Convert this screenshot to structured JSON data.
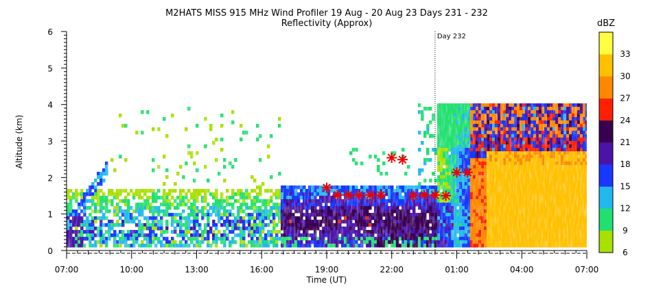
{
  "chart_data": {
    "type": "heatmap",
    "title": "M2HATS MISS 915 MHz Wind Profiler  19 Aug - 20 Aug 23 Days 231 - 232",
    "subtitle": "Reflectivity (Approx)",
    "xlabel": "Time (UT)",
    "ylabel": "Altitude (km)",
    "x_ticks": [
      "07:00",
      "10:00",
      "13:00",
      "16:00",
      "19:00",
      "22:00",
      "01:00",
      "04:00",
      "07:00"
    ],
    "y_ticks": [
      "0",
      "1",
      "2",
      "3",
      "4",
      "5",
      "6"
    ],
    "xlim_hours": [
      0,
      24
    ],
    "ylim": [
      0,
      6
    ],
    "day_marker": {
      "label": "Day 232",
      "hour": 17
    },
    "colorbar": {
      "unit": "dBZ",
      "ticks": [
        "6",
        "9",
        "12",
        "15",
        "18",
        "21",
        "24",
        "27",
        "30",
        "33"
      ],
      "colors": [
        "#a8e000",
        "#22e070",
        "#22b8ee",
        "#1838ff",
        "#4a14a8",
        "#3a0050",
        "#ff2000",
        "#ff8800",
        "#ffc000",
        "#ffff40"
      ]
    },
    "markers": {
      "symbol": "asterisk",
      "color": "#ee0000",
      "points": [
        {
          "hour": 12.0,
          "alt_km": 1.72
        },
        {
          "hour": 12.5,
          "alt_km": 1.52
        },
        {
          "hour": 13.0,
          "alt_km": 1.52
        },
        {
          "hour": 13.5,
          "alt_km": 1.52
        },
        {
          "hour": 14.0,
          "alt_km": 1.52
        },
        {
          "hour": 14.5,
          "alt_km": 1.52
        },
        {
          "hour": 15.0,
          "alt_km": 2.54
        },
        {
          "hour": 15.5,
          "alt_km": 2.49
        },
        {
          "hour": 16.0,
          "alt_km": 1.5
        },
        {
          "hour": 16.5,
          "alt_km": 1.52
        },
        {
          "hour": 17.0,
          "alt_km": 1.52
        },
        {
          "hour": 17.5,
          "alt_km": 1.5
        },
        {
          "hour": 18.0,
          "alt_km": 2.14
        },
        {
          "hour": 18.5,
          "alt_km": 2.14
        }
      ]
    }
  }
}
